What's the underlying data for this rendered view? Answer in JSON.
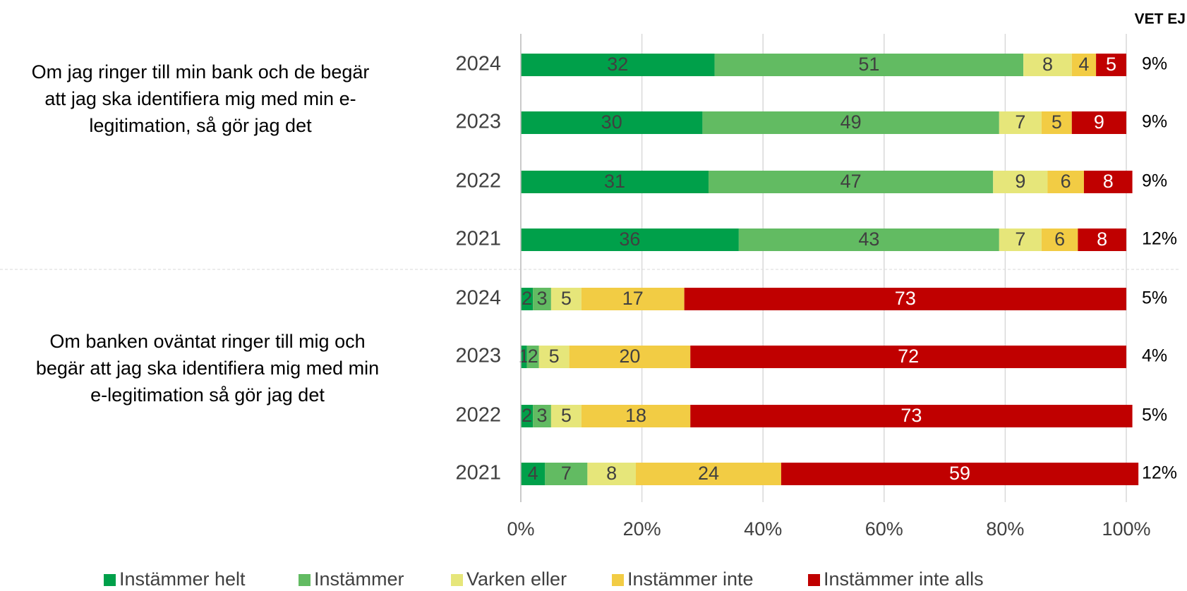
{
  "chart_data": {
    "type": "stacked_bar_horizontal",
    "categories": [
      "2024",
      "2023",
      "2022",
      "2021",
      "2024",
      "2023",
      "2022",
      "2021"
    ],
    "groups": [
      {
        "lines": [
          "Om jag ringer till min bank och de begär",
          "att jag ska identifiera mig med min e-",
          "legitimation, så gör jag det"
        ]
      },
      {
        "lines": [
          "Om banken oväntat ringer till mig och",
          "begär att jag ska identifiera mig med min",
          "e-legitimation så gör jag det"
        ]
      }
    ],
    "series": [
      {
        "name": "Instämmer helt",
        "color": "#00a04a",
        "values": [
          32,
          30,
          31,
          36,
          2,
          1,
          2,
          4
        ]
      },
      {
        "name": "Instämmer",
        "color": "#62bb62",
        "values": [
          51,
          49,
          47,
          43,
          3,
          2,
          3,
          7
        ]
      },
      {
        "name": "Varken eller",
        "color": "#e6e67a",
        "values": [
          8,
          7,
          9,
          7,
          5,
          5,
          5,
          8
        ]
      },
      {
        "name": "Instämmer inte",
        "color": "#f2cc44",
        "values": [
          4,
          5,
          6,
          6,
          17,
          20,
          18,
          24
        ]
      },
      {
        "name": "Instämmer inte alls",
        "color": "#c00000",
        "values": [
          5,
          9,
          8,
          8,
          73,
          72,
          73,
          59
        ]
      }
    ],
    "vet_ej": {
      "title": "VET EJ",
      "values": [
        9,
        9,
        9,
        12,
        5,
        4,
        5,
        12
      ],
      "value_labels": [
        "9%",
        "9%",
        "9%",
        "12%",
        "5%",
        "4%",
        "5%",
        "12%"
      ]
    },
    "xlim": [
      0,
      100
    ],
    "xticks": [
      {
        "value": 0,
        "label": "0%"
      },
      {
        "value": 20,
        "label": "20%"
      },
      {
        "value": 40,
        "label": "40%"
      },
      {
        "value": 60,
        "label": "60%"
      },
      {
        "value": 80,
        "label": "80%"
      },
      {
        "value": 100,
        "label": "100%"
      }
    ],
    "grid": true
  }
}
